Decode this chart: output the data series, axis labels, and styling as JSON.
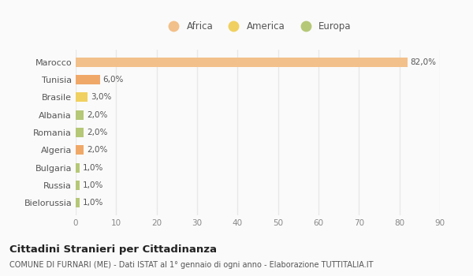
{
  "categories": [
    "Marocco",
    "Tunisia",
    "Brasile",
    "Albania",
    "Romania",
    "Algeria",
    "Bulgaria",
    "Russia",
    "Bielorussia"
  ],
  "values": [
    82.0,
    6.0,
    3.0,
    2.0,
    2.0,
    2.0,
    1.0,
    1.0,
    1.0
  ],
  "labels": [
    "82,0%",
    "6,0%",
    "3,0%",
    "2,0%",
    "2,0%",
    "2,0%",
    "1,0%",
    "1,0%",
    "1,0%"
  ],
  "bar_colors": [
    "#f2c08a",
    "#f0a868",
    "#f0d060",
    "#b5c878",
    "#b5c878",
    "#f0a868",
    "#b5c878",
    "#b5c878",
    "#b5c878"
  ],
  "continent": [
    "Africa",
    "Africa",
    "America",
    "Europa",
    "Europa",
    "Africa",
    "Europa",
    "Europa",
    "Europa"
  ],
  "legend_labels": [
    "Africa",
    "America",
    "Europa"
  ],
  "legend_colors": [
    "#f2c08a",
    "#f0d060",
    "#b5c878"
  ],
  "title": "Cittadini Stranieri per Cittadinanza",
  "subtitle": "COMUNE DI FURNARI (ME) - Dati ISTAT al 1° gennaio di ogni anno - Elaborazione TUTTITALIA.IT",
  "xlim": [
    0,
    90
  ],
  "xticks": [
    0,
    10,
    20,
    30,
    40,
    50,
    60,
    70,
    80,
    90
  ],
  "background_color": "#fafafa",
  "plot_bg_color": "#fafafa",
  "grid_color": "#e8e8e8",
  "bar_height": 0.55
}
